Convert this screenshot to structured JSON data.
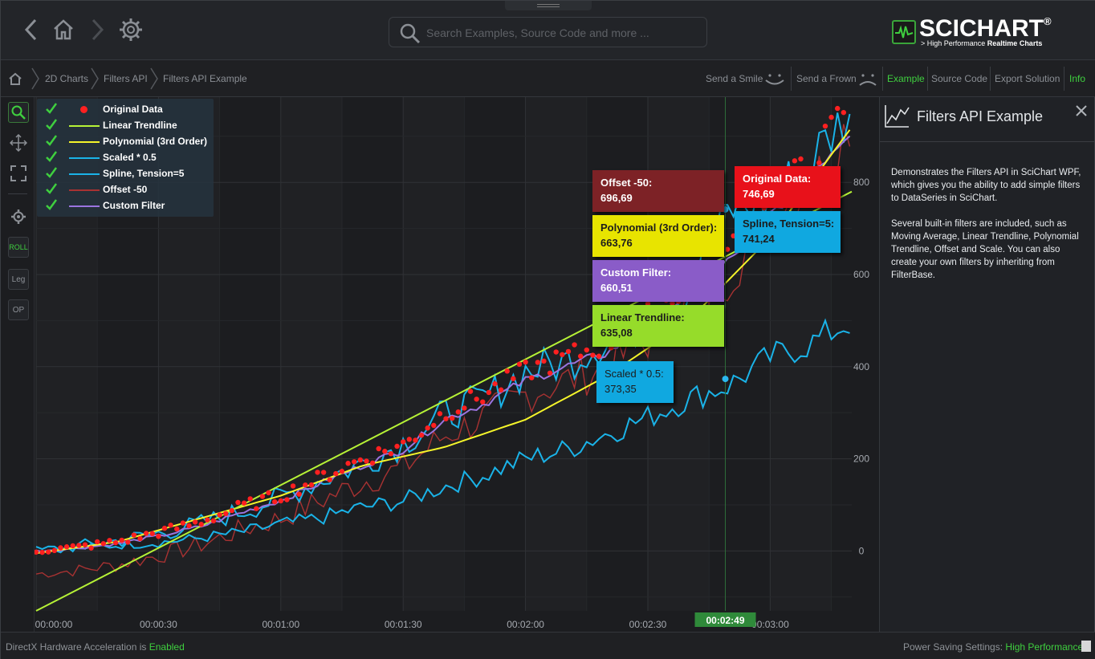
{
  "toolbar": {
    "back_icon": "chevron-left-icon",
    "home_icon": "home-icon",
    "forward_icon": "chevron-right-icon",
    "settings_icon": "gear-icon",
    "search_placeholder": "Search Examples, Source Code and more ..."
  },
  "logo": {
    "word": "SCICHART",
    "registered": "®",
    "tagline_prefix": "> High Performance ",
    "tagline_bold": "Realtime Charts"
  },
  "breadcrumb": {
    "home_icon": "home-icon",
    "items": [
      "2D Charts",
      "Filters API",
      "Filters API Example"
    ]
  },
  "actions": {
    "send_smile": "Send a Smile",
    "send_frown": "Send a Frown",
    "example": "Example",
    "source_code": "Source Code",
    "export_solution": "Export Solution",
    "info": "Info"
  },
  "left_tools": {
    "zoom_icon": "zoom-icon",
    "pan_icon": "pan-icon",
    "zoom_extents_icon": "zoom-extents-icon",
    "settings_icon": "gear-icon",
    "roll": "ROLL",
    "leg": "Leg",
    "op": "OP"
  },
  "legend": [
    {
      "label": "Original Data",
      "color": "#ff2020",
      "kind": "dot"
    },
    {
      "label": "Linear Trendline",
      "color": "#b6f236",
      "kind": "line"
    },
    {
      "label": "Polynomial (3rd Order)",
      "color": "#f5f52a",
      "kind": "line"
    },
    {
      "label": "Scaled * 0.5",
      "color": "#1ab3e8",
      "kind": "line"
    },
    {
      "label": "Spline, Tension=5",
      "color": "#1ab3e8",
      "kind": "line"
    },
    {
      "label": "Offset -50",
      "color": "#a83232",
      "kind": "line"
    },
    {
      "label": "Custom Filter",
      "color": "#9b74e0",
      "kind": "line"
    }
  ],
  "tooltips": {
    "offset": {
      "title": "Offset -50:",
      "value": "696,69",
      "color": "#7d2226"
    },
    "original": {
      "title": "Original Data:",
      "value": "746,69",
      "color": "#e8111a"
    },
    "spline": {
      "title": "Spline, Tension=5:",
      "value": "741,24",
      "color": "#10a8e0"
    },
    "polynomial": {
      "title": "Polynomial (3rd Order):",
      "value": "663,76",
      "color": "#e8e400"
    },
    "custom": {
      "title": "Custom Filter:",
      "value": "660,51",
      "color": "#8a5cc8"
    },
    "linear": {
      "title": "Linear Trendline:",
      "value": "635,08",
      "color": "#96dc2a"
    },
    "scaled": {
      "title": "Scaled * 0.5:",
      "value": "373,35",
      "color": "#10a8e0"
    }
  },
  "cursor_label": "00:02:49",
  "chart_data": {
    "type": "line",
    "x_unit": "seconds",
    "x_ticks": [
      "00:00:00",
      "00:00:30",
      "00:01:00",
      "00:01:30",
      "00:02:00",
      "00:02:30",
      "00:03:00"
    ],
    "y_ticks": [
      "0",
      "200",
      "400",
      "600",
      "800"
    ],
    "xlim": [
      0,
      200
    ],
    "ylim": [
      -130,
      985
    ],
    "cursor_x": 169,
    "series": [
      {
        "name": "Original Data",
        "color": "#ff2020",
        "kind": "scatter",
        "x": [
          0,
          10,
          20,
          30,
          40,
          50,
          60,
          70,
          80,
          90,
          100,
          110,
          120,
          130,
          140,
          150,
          160,
          170,
          180,
          190,
          200
        ],
        "y": [
          0,
          8,
          20,
          40,
          62,
          95,
          120,
          160,
          200,
          230,
          300,
          340,
          390,
          420,
          450,
          510,
          580,
          650,
          780,
          840,
          990
        ]
      },
      {
        "name": "Linear Trendline",
        "color": "#b6f236",
        "kind": "line",
        "x": [
          0,
          200
        ],
        "y": [
          -130,
          780
        ]
      },
      {
        "name": "Polynomial (3rd Order)",
        "color": "#f5f52a",
        "kind": "line",
        "x": [
          0,
          20,
          40,
          60,
          80,
          100,
          120,
          140,
          160,
          180,
          200
        ],
        "y": [
          -5,
          20,
          70,
          120,
          185,
          225,
          285,
          380,
          500,
          680,
          920
        ]
      },
      {
        "name": "Scaled * 0.5",
        "color": "#1ab3e8",
        "kind": "line",
        "x": [
          0,
          10,
          20,
          30,
          40,
          50,
          60,
          70,
          80,
          90,
          100,
          110,
          120,
          130,
          140,
          150,
          160,
          170,
          180,
          190,
          200
        ],
        "y": [
          0,
          6,
          12,
          18,
          28,
          40,
          58,
          72,
          95,
          108,
          140,
          165,
          200,
          220,
          255,
          290,
          330,
          360,
          420,
          450,
          500
        ]
      },
      {
        "name": "Spline, Tension=5",
        "color": "#1ab3e8",
        "kind": "line",
        "x": [
          0,
          10,
          20,
          30,
          40,
          50,
          60,
          70,
          80,
          90,
          100,
          110,
          120,
          130,
          140,
          150,
          160,
          170,
          180,
          190,
          200
        ],
        "y": [
          0,
          10,
          22,
          38,
          58,
          85,
          115,
          155,
          190,
          235,
          295,
          330,
          390,
          410,
          460,
          500,
          570,
          740,
          760,
          850,
          960
        ]
      },
      {
        "name": "Offset -50",
        "color": "#a83232",
        "kind": "line",
        "x": [
          0,
          10,
          20,
          30,
          40,
          50,
          60,
          70,
          80,
          90,
          100,
          110,
          120,
          130,
          140,
          150,
          160,
          170,
          180,
          190,
          200
        ],
        "y": [
          -50,
          -42,
          -30,
          -10,
          12,
          45,
          70,
          110,
          150,
          180,
          250,
          290,
          340,
          370,
          400,
          460,
          530,
          600,
          730,
          790,
          940
        ]
      },
      {
        "name": "Custom Filter",
        "color": "#9b74e0",
        "kind": "line",
        "x": [
          0,
          10,
          20,
          30,
          40,
          50,
          60,
          70,
          80,
          90,
          100,
          110,
          120,
          130,
          140,
          150,
          160,
          170,
          180,
          190,
          200
        ],
        "y": [
          0,
          6,
          16,
          32,
          52,
          82,
          110,
          148,
          185,
          220,
          285,
          320,
          370,
          400,
          430,
          490,
          560,
          630,
          730,
          820,
          915
        ]
      }
    ]
  },
  "info_panel": {
    "icon": "line-chart-icon",
    "title": "Filters API Example",
    "close_icon": "close-icon",
    "paragraph1": "Demonstrates the Filters API in SciChart WPF, which gives you the ability to add simple filters to DataSeries in SciChart.",
    "paragraph2": "Several built-in filters are included, such as Moving Average, Linear Trendline, Polynomial Trendline, Offset and Scale. You can also create your own filters by inheriting from FilterBase."
  },
  "status": {
    "left_prefix": "DirectX Hardware Acceleration is ",
    "left_value": "Enabled",
    "right_prefix": "Power Saving Settings: ",
    "right_value": "High Performance"
  }
}
